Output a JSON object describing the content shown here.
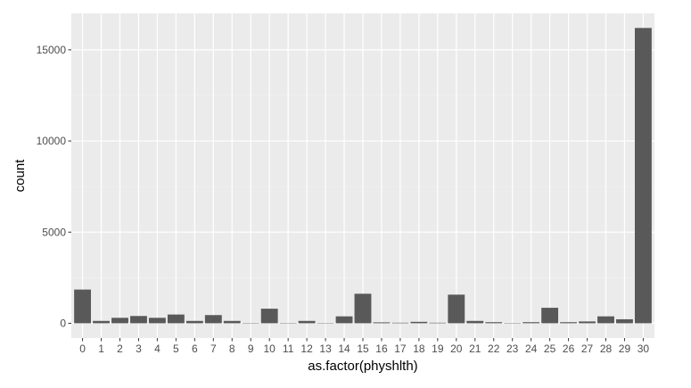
{
  "chart_data": {
    "type": "bar",
    "xlabel": "as.factor(physhlth)",
    "ylabel": "count",
    "categories": [
      "0",
      "1",
      "2",
      "3",
      "4",
      "5",
      "6",
      "7",
      "8",
      "9",
      "10",
      "11",
      "12",
      "13",
      "14",
      "15",
      "16",
      "17",
      "18",
      "19",
      "20",
      "21",
      "22",
      "23",
      "24",
      "25",
      "26",
      "27",
      "28",
      "29",
      "30"
    ],
    "values": [
      1850,
      130,
      300,
      400,
      300,
      480,
      130,
      450,
      130,
      20,
      800,
      20,
      130,
      20,
      380,
      1620,
      50,
      30,
      80,
      30,
      1570,
      130,
      60,
      20,
      60,
      850,
      60,
      100,
      380,
      220,
      16200
    ],
    "yticks": [
      0,
      5000,
      10000,
      15000
    ],
    "ylim": [
      -810,
      17000
    ],
    "grid": true,
    "legend": "none",
    "colors": {
      "panel_background": "#ebebeb",
      "grid_major": "#ffffff",
      "grid_minor": "#f2f2f2",
      "bar_fill": "#595959",
      "tick_text": "#4d4d4d",
      "tick_mark": "#333333",
      "title_text": "#000000"
    }
  }
}
